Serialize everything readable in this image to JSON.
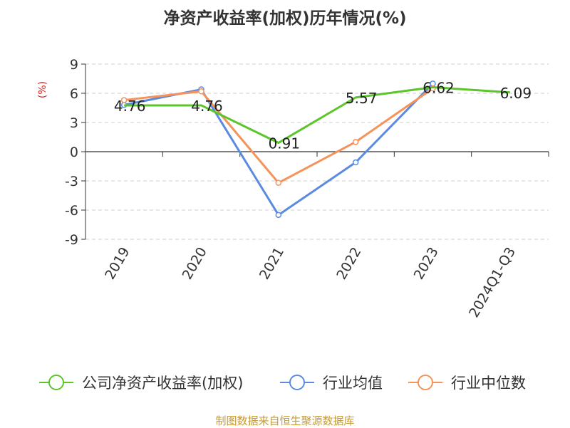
{
  "chart_data": {
    "type": "line",
    "title": "净资产收益率(加权)历年情况(%)",
    "ylabel": "(%)",
    "categories": [
      "2019",
      "2020",
      "2021",
      "2022",
      "2023",
      "2024Q1-Q3"
    ],
    "ylim": [
      -9,
      9
    ],
    "yticks": [
      "9",
      "6",
      "3",
      "0",
      "-3",
      "-6",
      "-9"
    ],
    "grid": true,
    "legend_position": "bottom",
    "series": [
      {
        "name": "公司净资产收益率(加权)",
        "color": "#5cc52a",
        "values": [
          4.76,
          4.76,
          0.91,
          5.57,
          6.62,
          6.09
        ],
        "labels": [
          "4.76",
          "4.76",
          "0.91",
          "5.57",
          "6.62",
          "6.09"
        ]
      },
      {
        "name": "行业均值",
        "color": "#5b8be0",
        "values": [
          4.8,
          6.4,
          -6.5,
          -1.1,
          7.0,
          null
        ]
      },
      {
        "name": "行业中位数",
        "color": "#f5935b",
        "values": [
          5.3,
          6.2,
          -3.2,
          1.0,
          6.5,
          null
        ]
      }
    ]
  },
  "footer": "制图数据来自恒生聚源数据库"
}
